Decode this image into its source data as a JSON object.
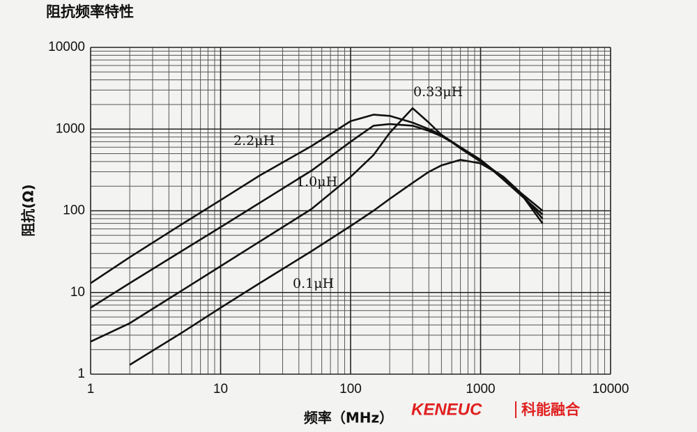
{
  "chart_data": {
    "type": "line",
    "title": "阻抗频率特性",
    "x_label": "频率（MHz）",
    "y_label": "阻抗(Ω)",
    "x_log": true,
    "y_log": true,
    "grid": true,
    "xlim": [
      1,
      10000
    ],
    "ylim": [
      1,
      10000
    ],
    "xticks": [
      1,
      10,
      100,
      1000,
      10000
    ],
    "yticks": [
      1,
      10,
      100,
      1000,
      10000
    ],
    "x": [
      1,
      2,
      5,
      10,
      20,
      50,
      100,
      150,
      200,
      300,
      400,
      500,
      700,
      1000,
      1500,
      2000,
      3000
    ],
    "series": [
      {
        "name": "2.2μH",
        "color": "#111111",
        "values": [
          13,
          27,
          68,
          135,
          270,
          620,
          1250,
          1500,
          1450,
          1200,
          1000,
          850,
          600,
          420,
          250,
          170,
          100
        ]
      },
      {
        "name": "1.0μH",
        "color": "#111111",
        "values": [
          6.5,
          13,
          32,
          63,
          125,
          310,
          700,
          1100,
          1150,
          1100,
          950,
          820,
          600,
          420,
          240,
          160,
          90
        ]
      },
      {
        "name": "0.33μH",
        "color": "#111111",
        "values": [
          2.5,
          4.2,
          10.5,
          21,
          42,
          105,
          260,
          480,
          900,
          1800,
          1200,
          850,
          580,
          400,
          260,
          170,
          80
        ]
      },
      {
        "name": "0.1μH",
        "color": "#111111",
        "values": [
          null,
          1.3,
          3.2,
          6.5,
          13,
          32,
          65,
          100,
          140,
          220,
          300,
          360,
          420,
          380,
          260,
          170,
          70
        ]
      }
    ],
    "watermark": [
      "KENEUC",
      "科能融合"
    ]
  }
}
